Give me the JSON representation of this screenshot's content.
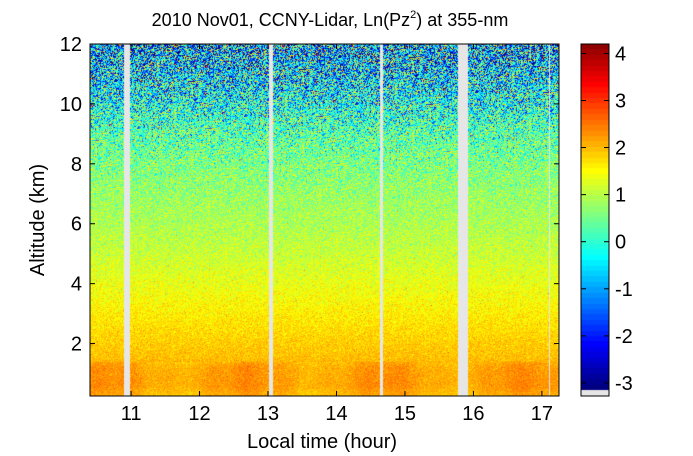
{
  "chart_data": {
    "type": "heatmap",
    "title": "2010 Nov01, CCNY-Lidar, Ln(Pz²) at 355-nm",
    "title_parts": {
      "prefix": "2010 Nov01, CCNY-Lidar, Ln(Pz",
      "superscript": "2",
      "suffix": ") at 355-nm"
    },
    "xlabel": "Local time (hour)",
    "ylabel": "Altitude (km)",
    "xlim": [
      10.4,
      17.25
    ],
    "ylim": [
      0.25,
      12
    ],
    "xticks": [
      11,
      12,
      13,
      14,
      15,
      16,
      17
    ],
    "yticks": [
      2,
      4,
      6,
      8,
      10,
      12
    ],
    "grid": false,
    "data_gaps_hours": [
      [
        10.9,
        10.98
      ],
      [
        13.01,
        13.08
      ],
      [
        14.63,
        14.68
      ],
      [
        15.78,
        15.92
      ],
      [
        17.1,
        17.12
      ]
    ],
    "colorbar": {
      "clim": [
        -3.15,
        4.2
      ],
      "ticks": [
        -3,
        -2,
        -1,
        0,
        1,
        2,
        3,
        4
      ],
      "colormap": "jet",
      "nan_color": "#e6e6e6"
    },
    "profile": {
      "description_points": [
        {
          "altitude_km": 0.3,
          "value": 2.0
        },
        {
          "altitude_km": 0.6,
          "value": 2.15
        },
        {
          "altitude_km": 1.2,
          "value": 2.1
        },
        {
          "altitude_km": 1.5,
          "value": 1.9
        },
        {
          "altitude_km": 2.0,
          "value": 1.8
        },
        {
          "altitude_km": 3.0,
          "value": 1.55
        },
        {
          "altitude_km": 4.0,
          "value": 1.3
        },
        {
          "altitude_km": 5.0,
          "value": 1.05
        },
        {
          "altitude_km": 6.0,
          "value": 0.85
        },
        {
          "altitude_km": 7.0,
          "value": 0.7
        },
        {
          "altitude_km": 8.0,
          "value": 0.5
        },
        {
          "altitude_km": 9.0,
          "value": 0.2
        },
        {
          "altitude_km": 10.0,
          "value": -0.3
        },
        {
          "altitude_km": 11.0,
          "value": -0.7
        },
        {
          "altitude_km": 12.0,
          "value": -1.0
        }
      ]
    }
  }
}
